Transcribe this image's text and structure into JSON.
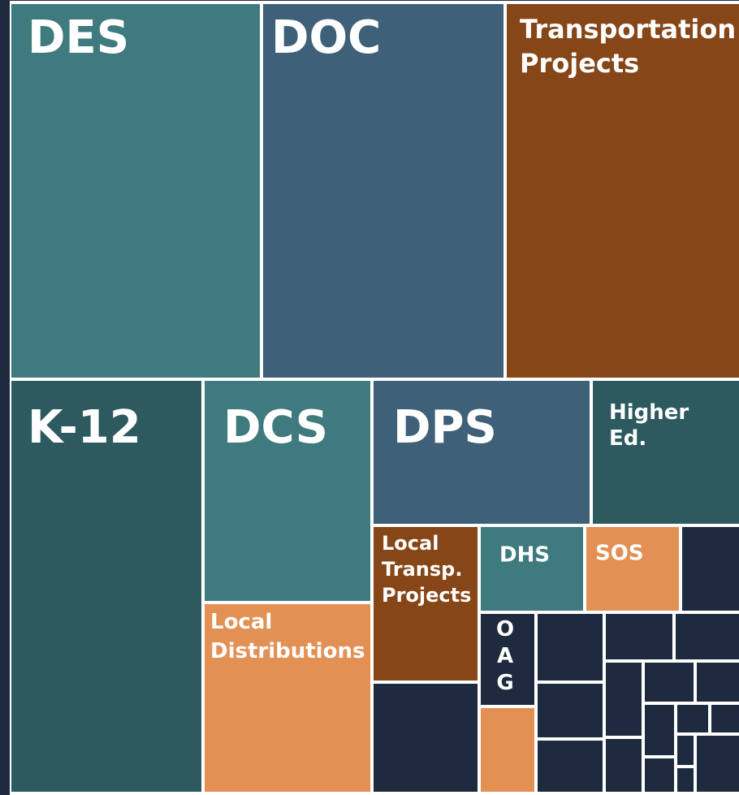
{
  "nodes": [
    {
      "label": "DES",
      "color": "#3e7a7e"
    },
    {
      "label": "DOC",
      "color": "#3f6079"
    },
    {
      "label": "Transportation Projects",
      "color": "#864617"
    },
    {
      "label": "K-12",
      "color": "#2c5a5f"
    },
    {
      "label": "DCS",
      "color": "#3e7a7e"
    },
    {
      "label": "Local Distributions",
      "color": "#e29054"
    },
    {
      "label": "DPS",
      "color": "#3f6079"
    },
    {
      "label": "Higher Ed.",
      "color": "#2c5a5f"
    },
    {
      "label": "Local Transp. Projects",
      "color": "#864617"
    },
    {
      "label": "DHS",
      "color": "#3e7a7e"
    },
    {
      "label": "SOS",
      "color": "#e29054"
    },
    {
      "label": "OAG",
      "color": "#1e2a3e"
    }
  ]
}
